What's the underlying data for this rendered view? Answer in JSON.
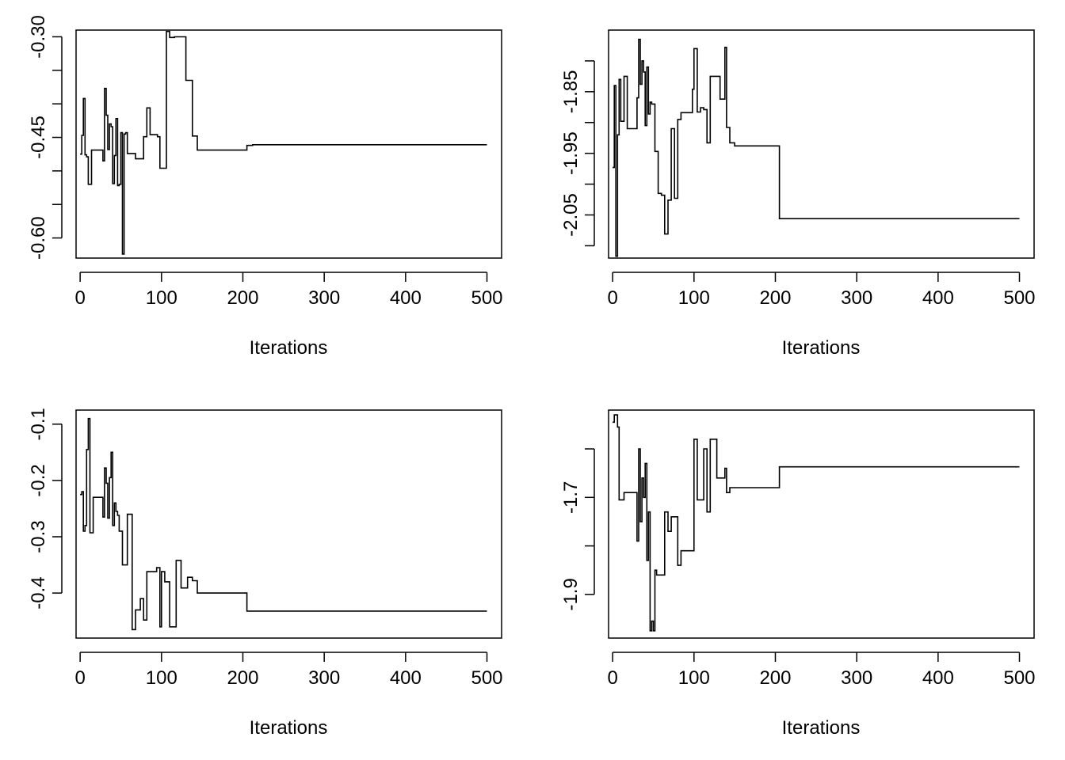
{
  "chart_data": [
    {
      "type": "line",
      "title": "",
      "xlabel": "Iterations",
      "ylabel": "",
      "xlim": [
        -5,
        518
      ],
      "ylim": [
        -0.63,
        -0.29
      ],
      "xticks": [
        0,
        100,
        200,
        300,
        400,
        500
      ],
      "xtick_labels": [
        "0",
        "100",
        "200",
        "300",
        "400",
        "500"
      ],
      "yticks": [
        -0.3,
        -0.35,
        -0.4,
        -0.45,
        -0.5,
        -0.55,
        -0.6
      ],
      "ytick_labels": [
        "-0.30",
        "",
        "",
        "-0.45",
        "",
        "",
        "-0.60"
      ],
      "grid": false,
      "series": [
        {
          "step": true,
          "x": [
            0,
            2,
            4,
            6,
            8,
            10,
            12,
            14,
            16,
            18,
            22,
            28,
            30,
            32,
            34,
            36,
            38,
            40,
            42,
            44,
            46,
            48,
            50,
            52,
            54,
            56,
            58,
            62,
            68,
            74,
            78,
            82,
            86,
            95,
            98,
            102,
            106,
            110,
            116,
            124,
            130,
            138,
            144,
            150,
            205,
            212,
            300,
            400,
            500
          ],
          "y": [
            -0.475,
            -0.447,
            -0.392,
            -0.476,
            -0.479,
            -0.52,
            -0.52,
            -0.469,
            -0.469,
            -0.469,
            -0.469,
            -0.485,
            -0.377,
            -0.417,
            -0.468,
            -0.43,
            -0.434,
            -0.519,
            -0.477,
            -0.422,
            -0.522,
            -0.52,
            -0.443,
            -0.624,
            -0.445,
            -0.443,
            -0.474,
            -0.474,
            -0.482,
            -0.482,
            -0.449,
            -0.406,
            -0.446,
            -0.449,
            -0.496,
            -0.496,
            -0.292,
            -0.301,
            -0.3,
            -0.3,
            -0.365,
            -0.448,
            -0.469,
            -0.469,
            -0.462,
            -0.461,
            -0.461,
            -0.461,
            -0.461
          ]
        }
      ]
    },
    {
      "type": "line",
      "title": "",
      "xlabel": "Iterations",
      "ylabel": "",
      "xlim": [
        -5,
        518
      ],
      "ylim": [
        -2.12,
        -1.75
      ],
      "xticks": [
        0,
        100,
        200,
        300,
        400,
        500
      ],
      "xtick_labels": [
        "0",
        "100",
        "200",
        "300",
        "400",
        "500"
      ],
      "yticks": [
        -1.8,
        -1.85,
        -1.9,
        -1.95,
        -2.0,
        -2.05,
        -2.1
      ],
      "ytick_labels": [
        "",
        "-1.85",
        "",
        "-1.95",
        "",
        "-2.05",
        ""
      ],
      "grid": false,
      "series": [
        {
          "step": true,
          "x": [
            0,
            2,
            4,
            6,
            8,
            10,
            14,
            18,
            24,
            28,
            30,
            32,
            34,
            36,
            38,
            40,
            42,
            44,
            46,
            48,
            52,
            56,
            60,
            64,
            68,
            72,
            76,
            80,
            84,
            90,
            96,
            98,
            100,
            104,
            108,
            112,
            116,
            120,
            126,
            132,
            138,
            140,
            144,
            150,
            205,
            212,
            300,
            400,
            500
          ],
          "y": [
            -1.973,
            -1.84,
            -2.117,
            -1.92,
            -1.83,
            -1.898,
            -1.825,
            -1.91,
            -1.91,
            -1.91,
            -1.86,
            -1.765,
            -1.838,
            -1.8,
            -1.818,
            -1.905,
            -1.81,
            -1.886,
            -1.867,
            -1.87,
            -1.947,
            -2.015,
            -2.018,
            -2.081,
            -2.026,
            -1.91,
            -2.023,
            -1.895,
            -1.884,
            -1.884,
            -1.884,
            -1.846,
            -1.78,
            -1.883,
            -1.876,
            -1.879,
            -1.933,
            -1.825,
            -1.825,
            -1.862,
            -1.778,
            -1.908,
            -1.933,
            -1.938,
            -2.056,
            -2.056,
            -2.056,
            -2.056,
            -2.056
          ]
        }
      ]
    },
    {
      "type": "line",
      "title": "",
      "xlabel": "Iterations",
      "ylabel": "",
      "xlim": [
        -5,
        518
      ],
      "ylim": [
        -0.48,
        -0.075
      ],
      "xticks": [
        0,
        100,
        200,
        300,
        400,
        500
      ],
      "xtick_labels": [
        "0",
        "100",
        "200",
        "300",
        "400",
        "500"
      ],
      "yticks": [
        -0.1,
        -0.2,
        -0.3,
        -0.4
      ],
      "ytick_labels": [
        "-0.1",
        "-0.2",
        "-0.3",
        "-0.4"
      ],
      "grid": false,
      "series": [
        {
          "step": true,
          "x": [
            0,
            2,
            4,
            6,
            8,
            10,
            12,
            16,
            22,
            28,
            30,
            32,
            34,
            36,
            38,
            40,
            42,
            44,
            46,
            48,
            52,
            58,
            64,
            68,
            74,
            78,
            82,
            86,
            94,
            98,
            100,
            104,
            110,
            118,
            124,
            132,
            138,
            144,
            150,
            205,
            212,
            300,
            400,
            500
          ],
          "y": [
            -0.225,
            -0.22,
            -0.29,
            -0.28,
            -0.145,
            -0.09,
            -0.293,
            -0.23,
            -0.23,
            -0.265,
            -0.178,
            -0.205,
            -0.267,
            -0.195,
            -0.15,
            -0.28,
            -0.24,
            -0.255,
            -0.262,
            -0.29,
            -0.35,
            -0.26,
            -0.465,
            -0.43,
            -0.41,
            -0.448,
            -0.362,
            -0.362,
            -0.355,
            -0.46,
            -0.362,
            -0.38,
            -0.46,
            -0.342,
            -0.391,
            -0.372,
            -0.378,
            -0.4,
            -0.4,
            -0.432,
            -0.432,
            -0.432,
            -0.432,
            -0.432
          ]
        }
      ]
    },
    {
      "type": "line",
      "title": "",
      "xlabel": "Iterations",
      "ylabel": "",
      "xlim": [
        -5,
        518
      ],
      "ylim": [
        -1.99,
        -1.52
      ],
      "xticks": [
        0,
        100,
        200,
        300,
        400,
        500
      ],
      "xtick_labels": [
        "0",
        "100",
        "200",
        "300",
        "400",
        "500"
      ],
      "yticks": [
        -1.6,
        -1.7,
        -1.8,
        -1.9
      ],
      "ytick_labels": [
        "",
        "-1.7",
        "",
        "-1.9"
      ],
      "grid": false,
      "series": [
        {
          "step": true,
          "x": [
            0,
            2,
            4,
            6,
            8,
            10,
            14,
            18,
            24,
            28,
            30,
            32,
            34,
            36,
            38,
            40,
            42,
            44,
            46,
            48,
            50,
            52,
            54,
            58,
            64,
            68,
            72,
            76,
            80,
            84,
            90,
            96,
            100,
            104,
            108,
            112,
            116,
            120,
            128,
            138,
            140,
            144,
            150,
            205,
            212,
            300,
            400,
            500
          ],
          "y": [
            -1.545,
            -1.53,
            -1.53,
            -1.555,
            -1.705,
            -1.705,
            -1.69,
            -1.69,
            -1.69,
            -1.69,
            -1.79,
            -1.6,
            -1.75,
            -1.66,
            -1.7,
            -1.63,
            -1.83,
            -1.73,
            -1.975,
            -1.955,
            -1.975,
            -1.85,
            -1.86,
            -1.86,
            -1.73,
            -1.77,
            -1.74,
            -1.74,
            -1.84,
            -1.81,
            -1.81,
            -1.81,
            -1.58,
            -1.705,
            -1.705,
            -1.6,
            -1.73,
            -1.58,
            -1.66,
            -1.64,
            -1.69,
            -1.68,
            -1.68,
            -1.637,
            -1.637,
            -1.637,
            -1.637,
            -1.637
          ]
        }
      ]
    }
  ]
}
